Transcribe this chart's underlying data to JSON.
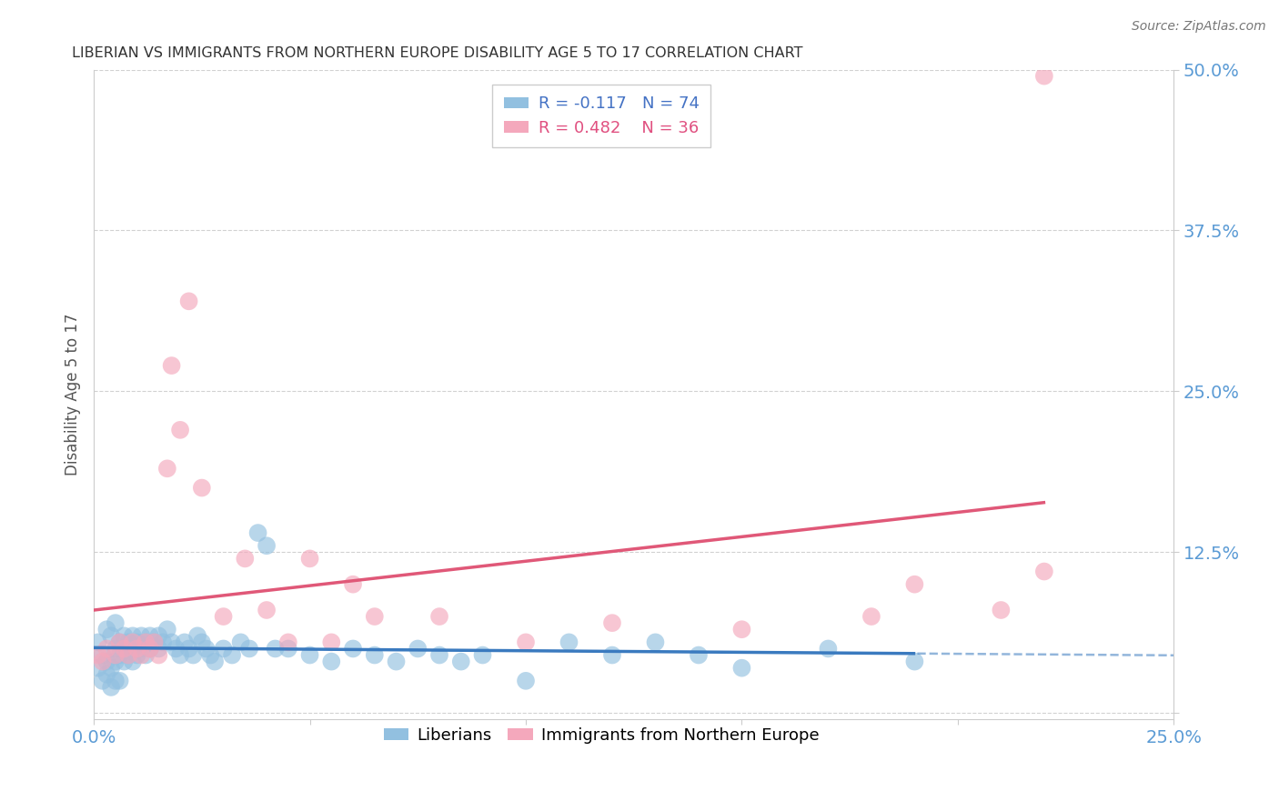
{
  "title": "LIBERIAN VS IMMIGRANTS FROM NORTHERN EUROPE DISABILITY AGE 5 TO 17 CORRELATION CHART",
  "source": "Source: ZipAtlas.com",
  "ylabel": "Disability Age 5 to 17",
  "xlim": [
    0.0,
    0.25
  ],
  "ylim": [
    -0.005,
    0.5
  ],
  "yticks": [
    0.0,
    0.125,
    0.25,
    0.375,
    0.5
  ],
  "ytick_labels": [
    "",
    "12.5%",
    "25.0%",
    "37.5%",
    "50.0%"
  ],
  "liberian_R": -0.117,
  "liberian_N": 74,
  "northern_europe_R": 0.482,
  "northern_europe_N": 36,
  "liberian_color": "#92C0E0",
  "northern_europe_color": "#F4A8BC",
  "liberian_line_color": "#3A7ABF",
  "northern_europe_line_color": "#E05878",
  "background_color": "#ffffff",
  "grid_color": "#cccccc",
  "title_color": "#333333",
  "axis_label_color": "#5b9bd5",
  "legend_label_color_blue": "#4472c4",
  "legend_label_color_pink": "#e05080",
  "liberian_x": [
    0.001,
    0.002,
    0.003,
    0.003,
    0.004,
    0.004,
    0.005,
    0.005,
    0.005,
    0.006,
    0.006,
    0.007,
    0.007,
    0.007,
    0.008,
    0.008,
    0.009,
    0.009,
    0.009,
    0.01,
    0.01,
    0.011,
    0.011,
    0.012,
    0.012,
    0.013,
    0.013,
    0.014,
    0.015,
    0.015,
    0.016,
    0.017,
    0.018,
    0.019,
    0.02,
    0.021,
    0.022,
    0.023,
    0.024,
    0.025,
    0.026,
    0.027,
    0.028,
    0.03,
    0.032,
    0.034,
    0.036,
    0.038,
    0.04,
    0.042,
    0.045,
    0.05,
    0.055,
    0.06,
    0.065,
    0.07,
    0.075,
    0.08,
    0.085,
    0.09,
    0.1,
    0.11,
    0.12,
    0.13,
    0.14,
    0.15,
    0.001,
    0.002,
    0.003,
    0.004,
    0.005,
    0.006,
    0.17,
    0.19
  ],
  "liberian_y": [
    0.055,
    0.045,
    0.04,
    0.065,
    0.035,
    0.06,
    0.05,
    0.07,
    0.04,
    0.055,
    0.045,
    0.06,
    0.05,
    0.04,
    0.055,
    0.045,
    0.06,
    0.05,
    0.04,
    0.055,
    0.045,
    0.06,
    0.05,
    0.055,
    0.045,
    0.06,
    0.05,
    0.055,
    0.06,
    0.05,
    0.055,
    0.065,
    0.055,
    0.05,
    0.045,
    0.055,
    0.05,
    0.045,
    0.06,
    0.055,
    0.05,
    0.045,
    0.04,
    0.05,
    0.045,
    0.055,
    0.05,
    0.14,
    0.13,
    0.05,
    0.05,
    0.045,
    0.04,
    0.05,
    0.045,
    0.04,
    0.05,
    0.045,
    0.04,
    0.045,
    0.025,
    0.055,
    0.045,
    0.055,
    0.045,
    0.035,
    0.035,
    0.025,
    0.03,
    0.02,
    0.025,
    0.025,
    0.05,
    0.04
  ],
  "northern_europe_x": [
    0.001,
    0.002,
    0.003,
    0.005,
    0.006,
    0.007,
    0.008,
    0.009,
    0.01,
    0.011,
    0.012,
    0.013,
    0.014,
    0.015,
    0.017,
    0.018,
    0.02,
    0.022,
    0.025,
    0.03,
    0.035,
    0.04,
    0.045,
    0.05,
    0.055,
    0.06,
    0.065,
    0.08,
    0.1,
    0.12,
    0.15,
    0.18,
    0.19,
    0.21,
    0.22,
    0.22
  ],
  "northern_europe_y": [
    0.045,
    0.04,
    0.05,
    0.045,
    0.055,
    0.05,
    0.045,
    0.055,
    0.05,
    0.045,
    0.055,
    0.05,
    0.055,
    0.045,
    0.19,
    0.27,
    0.22,
    0.32,
    0.175,
    0.075,
    0.12,
    0.08,
    0.055,
    0.12,
    0.055,
    0.1,
    0.075,
    0.075,
    0.055,
    0.07,
    0.065,
    0.075,
    0.1,
    0.08,
    0.11,
    0.495
  ]
}
